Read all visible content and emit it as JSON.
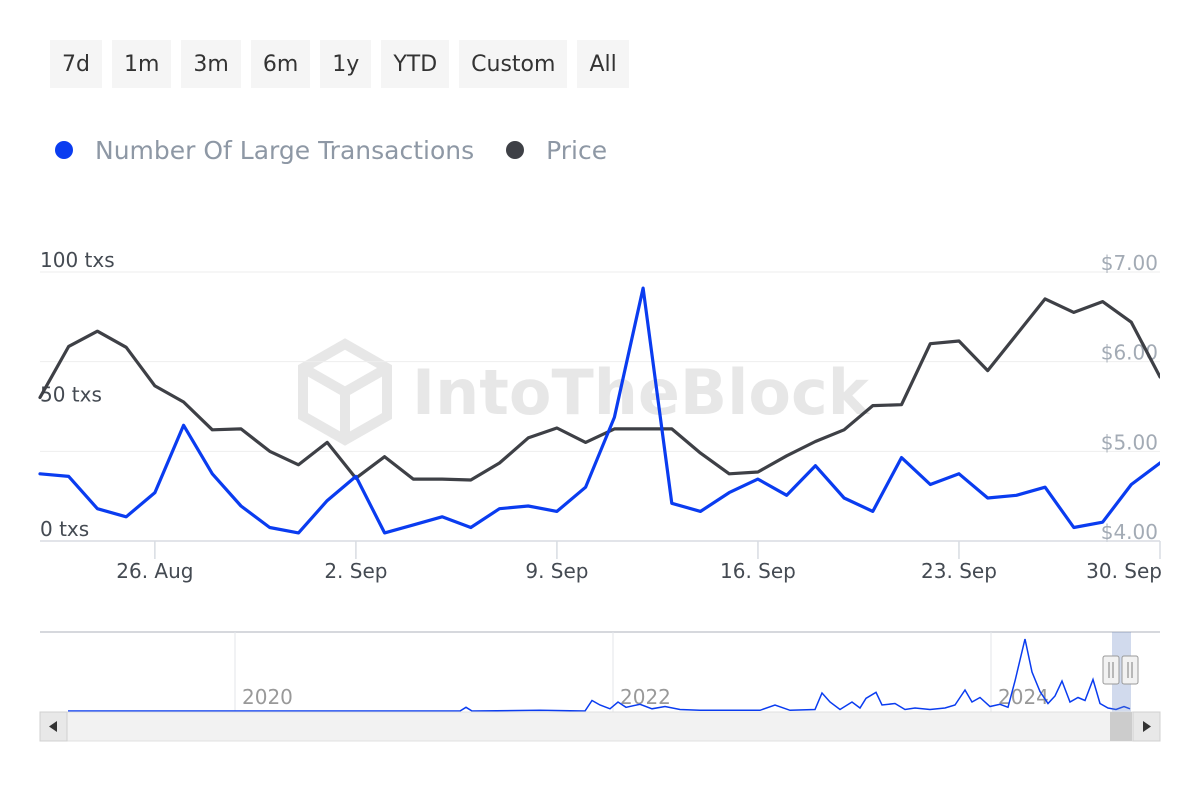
{
  "range_buttons": [
    "7d",
    "1m",
    "3m",
    "6m",
    "1y",
    "YTD",
    "Custom",
    "All"
  ],
  "legend": [
    {
      "label": "Number Of Large Transactions",
      "color": "#0a3cf0"
    },
    {
      "label": "Price",
      "color": "#3e4046"
    }
  ],
  "watermark": "IntoTheBlock",
  "chart_data": {
    "type": "line",
    "x_tick_labels": [
      "26. Aug",
      "2. Sep",
      "9. Sep",
      "16. Sep",
      "23. Sep",
      "30. Sep"
    ],
    "x_range": [
      "2024-08-22",
      "2024-09-30"
    ],
    "left_axis": {
      "ticks": [
        "0 txs",
        "50 txs",
        "100 txs"
      ],
      "range": [
        0,
        100
      ]
    },
    "right_axis": {
      "ticks": [
        "$4.00",
        "$5.00",
        "$6.00",
        "$7.00"
      ],
      "range": [
        4.0,
        7.0
      ]
    },
    "grid": true,
    "legend_position": "top-left",
    "series": [
      {
        "name": "Number Of Large Transactions",
        "axis": "left",
        "color": "#0a3cf0",
        "x": [
          "2024-08-22",
          "2024-08-23",
          "2024-08-24",
          "2024-08-25",
          "2024-08-26",
          "2024-08-27",
          "2024-08-28",
          "2024-08-29",
          "2024-08-30",
          "2024-08-31",
          "2024-09-01",
          "2024-09-02",
          "2024-09-03",
          "2024-09-04",
          "2024-09-05",
          "2024-09-06",
          "2024-09-07",
          "2024-09-08",
          "2024-09-09",
          "2024-09-10",
          "2024-09-11",
          "2024-09-12",
          "2024-09-13",
          "2024-09-14",
          "2024-09-15",
          "2024-09-16",
          "2024-09-17",
          "2024-09-18",
          "2024-09-19",
          "2024-09-20",
          "2024-09-21",
          "2024-09-22",
          "2024-09-23",
          "2024-09-24",
          "2024-09-25",
          "2024-09-26",
          "2024-09-27",
          "2024-09-28",
          "2024-09-29",
          "2024-09-30"
        ],
        "values": [
          25,
          24,
          12,
          9,
          18,
          43,
          25,
          13,
          5,
          3,
          15,
          24,
          3,
          6,
          9,
          5,
          12,
          13,
          11,
          20,
          46,
          94,
          14,
          11,
          18,
          23,
          17,
          28,
          16,
          11,
          31,
          21,
          25,
          16,
          17,
          20,
          5,
          7,
          21,
          29
        ]
      },
      {
        "name": "Price",
        "axis": "right",
        "color": "#3e4046",
        "x": [
          "2024-08-22",
          "2024-08-23",
          "2024-08-24",
          "2024-08-25",
          "2024-08-26",
          "2024-08-27",
          "2024-08-28",
          "2024-08-29",
          "2024-08-30",
          "2024-08-31",
          "2024-09-01",
          "2024-09-02",
          "2024-09-03",
          "2024-09-04",
          "2024-09-05",
          "2024-09-06",
          "2024-09-07",
          "2024-09-08",
          "2024-09-09",
          "2024-09-10",
          "2024-09-11",
          "2024-09-12",
          "2024-09-13",
          "2024-09-14",
          "2024-09-15",
          "2024-09-16",
          "2024-09-17",
          "2024-09-18",
          "2024-09-19",
          "2024-09-20",
          "2024-09-21",
          "2024-09-22",
          "2024-09-23",
          "2024-09-24",
          "2024-09-25",
          "2024-09-26",
          "2024-09-27",
          "2024-09-28",
          "2024-09-29",
          "2024-09-30"
        ],
        "values": [
          5.6,
          6.17,
          6.34,
          6.16,
          5.73,
          5.55,
          5.24,
          5.25,
          5.0,
          4.85,
          5.1,
          4.7,
          4.94,
          4.69,
          4.69,
          4.68,
          4.87,
          5.15,
          5.26,
          5.1,
          5.25,
          5.25,
          5.25,
          4.98,
          4.75,
          4.77,
          4.95,
          5.11,
          5.24,
          5.51,
          5.52,
          6.2,
          6.23,
          5.9,
          6.3,
          6.7,
          6.55,
          6.67,
          6.44,
          5.83
        ]
      }
    ]
  },
  "navigator": {
    "year_labels": [
      "2020",
      "2022",
      "2024"
    ]
  }
}
